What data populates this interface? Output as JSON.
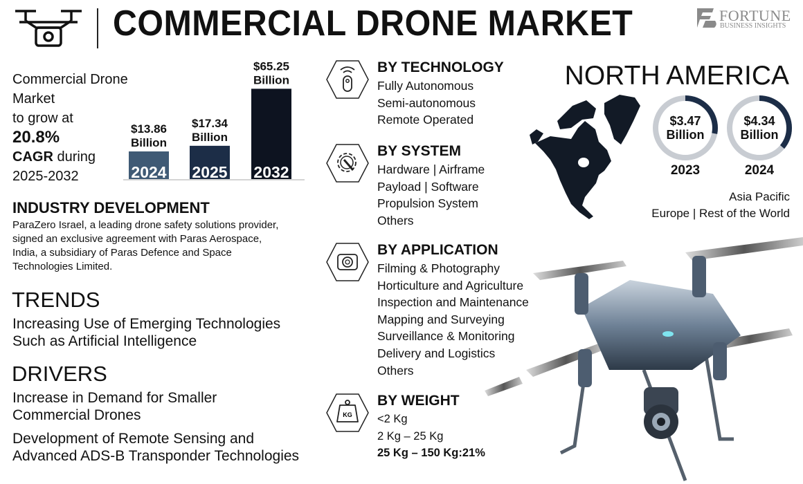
{
  "header": {
    "title": "COMMERCIAL DRONE MARKET",
    "logo_line1": "FORTUNE",
    "logo_line2": "BUSINESS INSIGHTS"
  },
  "intro": {
    "line1": "Commercial Drone",
    "line2": "Market",
    "line3": "to grow at",
    "cagr": "20.8%",
    "cagr_label": "CAGR",
    "during": " during",
    "period": "2025-2032"
  },
  "chart_data": {
    "type": "bar",
    "categories": [
      "2024",
      "2025",
      "2032"
    ],
    "values": [
      13.86,
      17.34,
      65.25
    ],
    "data_labels": [
      [
        "$13.86",
        "Billion"
      ],
      [
        "$17.34",
        "Billion"
      ],
      [
        "$65.25",
        "Billion"
      ]
    ],
    "colors": [
      "#3f5a75",
      "#1c2d47",
      "#0d1320"
    ],
    "unit": "USD Billion"
  },
  "industry": {
    "heading": "INDUSTRY DEVELOPMENT",
    "lines": [
      "ParaZero Israel, a leading drone safety solutions provider,",
      "signed an exclusive agreement with Paras Aerospace,",
      "India, a subsidiary of Paras Defence and Space",
      "Technologies Limited."
    ]
  },
  "trends": {
    "heading": "TRENDS",
    "lines": [
      "Increasing Use of Emerging Technologies",
      "Such as Artificial Intelligence"
    ]
  },
  "drivers": {
    "heading": "DRIVERS",
    "lines": [
      "Increase in Demand for Smaller",
      "Commercial Drones",
      "Development of Remote Sensing and",
      "Advanced ADS-B Transponder Technologies"
    ]
  },
  "segments": [
    {
      "heading": "BY TECHNOLOGY",
      "icon": "remote-control-icon",
      "items": [
        "Fully Autonomous",
        "Semi-autonomous",
        "Remote Operated"
      ]
    },
    {
      "heading": "BY SYSTEM",
      "icon": "gear-wrench-icon",
      "items": [
        "Hardware  |  Airframe",
        "Payload  |  Software",
        "Propulsion System",
        "Others"
      ]
    },
    {
      "heading": "BY APPLICATION",
      "icon": "camera-icon",
      "items": [
        "Filming & Photography",
        "Horticulture and Agriculture",
        "Inspection and Maintenance",
        "Mapping and Surveying",
        "Surveillance & Monitoring",
        "Delivery and Logistics",
        "Others"
      ]
    },
    {
      "heading": "BY WEIGHT",
      "icon": "weight-kg-icon",
      "icon_text": "KG",
      "items": [
        "<2 Kg",
        "2 Kg – 25 Kg",
        "25 Kg – 150 Kg:21%"
      ]
    }
  ],
  "region": {
    "heading": "NORTH AMERICA",
    "donuts": [
      {
        "value": "$3.47",
        "unit": "Billion",
        "year": "2023",
        "fill": 0.28
      },
      {
        "value": "$4.34",
        "unit": "Billion",
        "year": "2024",
        "fill": 0.36
      }
    ],
    "ring_color": "#1c2d47",
    "track_color": "#c8ccd2",
    "others_line1": "Asia Pacific",
    "others_line2": "Europe  |  Rest of the World"
  }
}
